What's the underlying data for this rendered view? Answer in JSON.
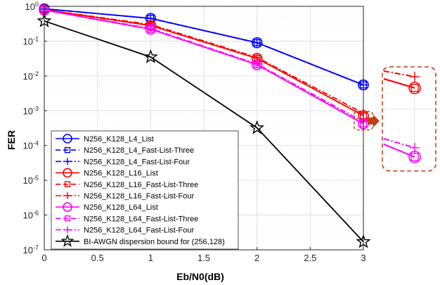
{
  "chart_data": {
    "type": "line",
    "xlabel": "Eb/N0(dB)",
    "ylabel": "FER",
    "xlim": [
      0,
      3
    ],
    "ylim": [
      1e-07,
      1
    ],
    "yscale": "log",
    "grid": true,
    "legend_position": "bottom-left",
    "x": [
      0,
      1,
      2,
      3
    ],
    "x_tick_labels": [
      "0",
      "0.5",
      "1",
      "1.5",
      "2",
      "2.5",
      "3"
    ],
    "x_tick_values": [
      0,
      0.5,
      1,
      1.5,
      2,
      2.5,
      3
    ],
    "y_tick_exponents": [
      -7,
      -6,
      -5,
      -4,
      -3,
      -2,
      -1,
      0
    ],
    "y_tick_base": "10",
    "series": [
      {
        "name": "N256_K128_L4_List",
        "color": "#0000ff",
        "dash": "solid",
        "marker": "circle",
        "values": [
          0.85,
          0.45,
          0.09,
          0.0055
        ]
      },
      {
        "name": "N256_K128_L4_Fast-List-Three",
        "color": "#0000ff",
        "dash": "dashed",
        "marker": "square",
        "values": [
          0.85,
          0.45,
          0.09,
          0.0055
        ]
      },
      {
        "name": "N256_K128_L4_Fast-List-Four",
        "color": "#0000ff",
        "dash": "dashdot",
        "marker": "plus",
        "values": [
          0.85,
          0.45,
          0.09,
          0.0055
        ]
      },
      {
        "name": "N256_K128_L16_List",
        "color": "#ff0000",
        "dash": "solid",
        "marker": "circle",
        "values": [
          0.8,
          0.28,
          0.032,
          0.00072
        ]
      },
      {
        "name": "N256_K128_L16_Fast-List-Three",
        "color": "#ff0000",
        "dash": "dashed",
        "marker": "square",
        "values": [
          0.8,
          0.28,
          0.032,
          0.00072
        ]
      },
      {
        "name": "N256_K128_L16_Fast-List-Four",
        "color": "#ff0000",
        "dash": "dashdot",
        "marker": "plus",
        "values": [
          0.8,
          0.3,
          0.034,
          0.00085
        ]
      },
      {
        "name": "N256_K128_L64_List",
        "color": "#ff00ff",
        "dash": "solid",
        "marker": "circle",
        "values": [
          0.78,
          0.22,
          0.021,
          0.00042
        ]
      },
      {
        "name": "N256_K128_L64_Fast-List-Three",
        "color": "#ff00ff",
        "dash": "dashed",
        "marker": "square",
        "values": [
          0.78,
          0.22,
          0.021,
          0.00042
        ]
      },
      {
        "name": "N256_K128_L64_Fast-List-Four",
        "color": "#ff00ff",
        "dash": "dashdot",
        "marker": "plus",
        "values": [
          0.78,
          0.23,
          0.022,
          0.00048
        ]
      },
      {
        "name": "BI-AWGN dispersion bound for (256,128)",
        "color": "#000000",
        "dash": "solid",
        "marker": "star",
        "values": [
          0.38,
          0.035,
          0.00032,
          1.7e-07
        ]
      }
    ],
    "inset": {
      "description_color": "#c0401a",
      "arrow_color": "#c0401a"
    }
  }
}
